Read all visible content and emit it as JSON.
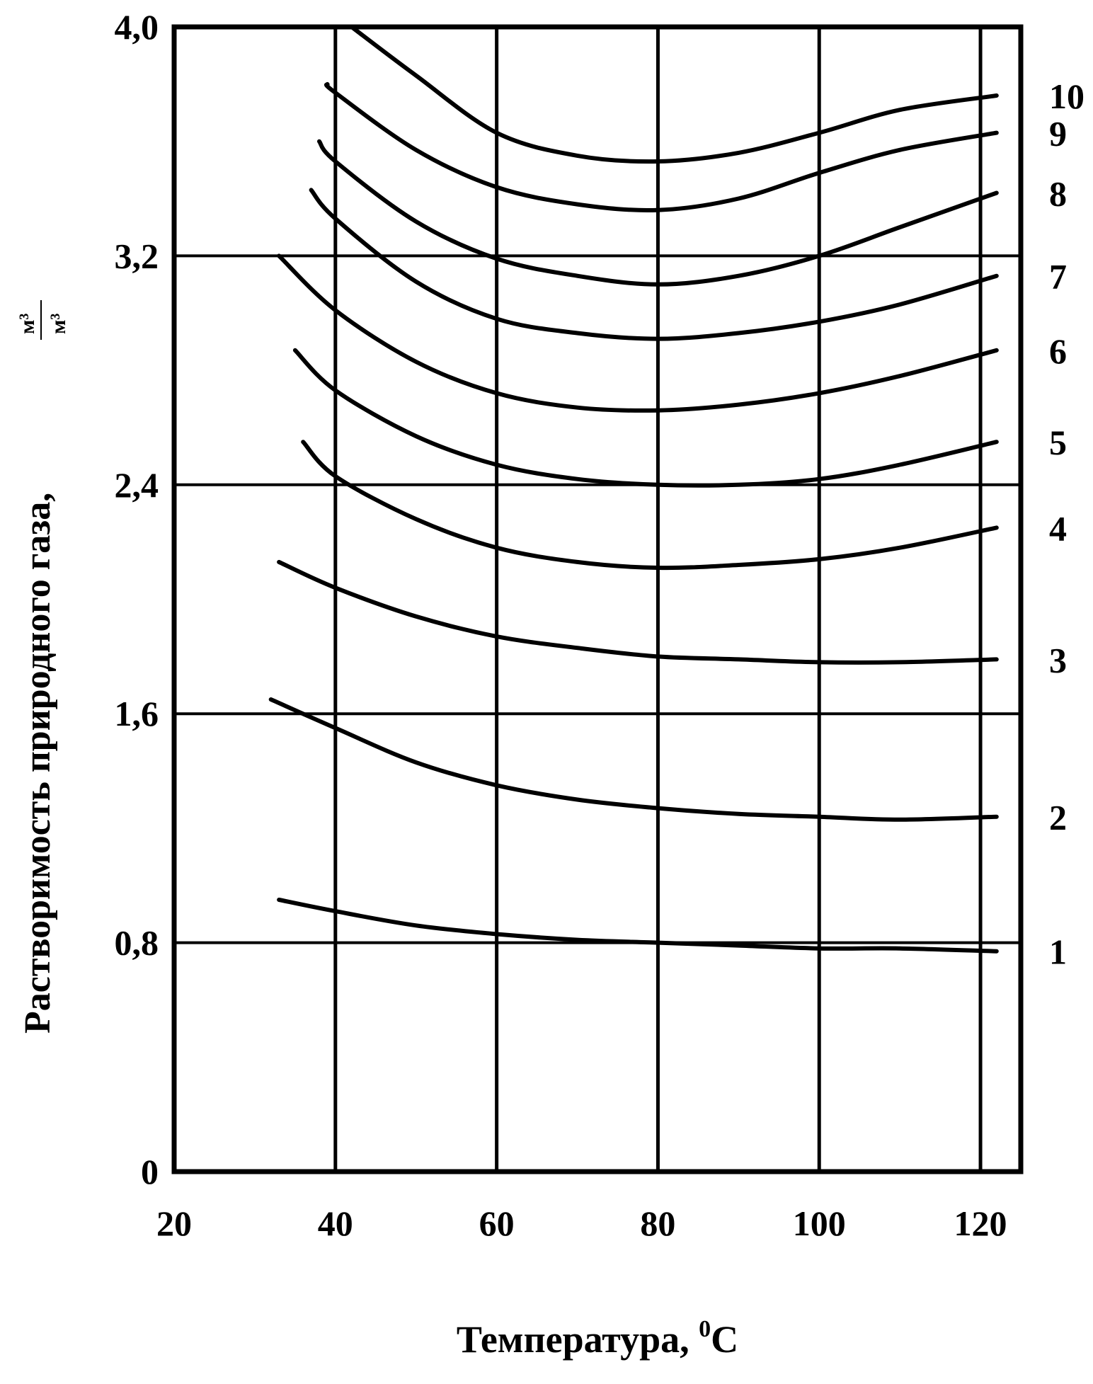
{
  "chart_data": {
    "type": "line",
    "title": "",
    "xlabel_text": "Температура, ",
    "xlabel_unit_sup": "0",
    "xlabel_unit": "C",
    "ylabel_text": "Растворимость природного газа, ",
    "ylabel_unit_num": "м³",
    "ylabel_unit_den": "м³",
    "xlim": [
      20,
      125
    ],
    "ylim": [
      0,
      4.0
    ],
    "x_ticks": [
      20,
      40,
      60,
      80,
      100,
      120
    ],
    "x_tick_labels": [
      "20",
      "40",
      "60",
      "80",
      "100",
      "120"
    ],
    "y_ticks": [
      0,
      0.8,
      1.6,
      2.4,
      3.2,
      4.0
    ],
    "y_tick_labels": [
      "0",
      "0,8",
      "1,6",
      "2,4",
      "3,2",
      "4,0"
    ],
    "grid": true,
    "series": [
      {
        "name": "1",
        "x": [
          33,
          40,
          50,
          60,
          70,
          80,
          90,
          100,
          110,
          122
        ],
        "y": [
          0.95,
          0.91,
          0.86,
          0.83,
          0.81,
          0.8,
          0.79,
          0.78,
          0.78,
          0.77
        ]
      },
      {
        "name": "2",
        "x": [
          32,
          40,
          50,
          60,
          70,
          80,
          90,
          100,
          110,
          122
        ],
        "y": [
          1.65,
          1.55,
          1.43,
          1.35,
          1.3,
          1.27,
          1.25,
          1.24,
          1.23,
          1.24
        ]
      },
      {
        "name": "3",
        "x": [
          33,
          40,
          50,
          60,
          70,
          80,
          90,
          100,
          110,
          122
        ],
        "y": [
          2.13,
          2.04,
          1.94,
          1.87,
          1.83,
          1.8,
          1.79,
          1.78,
          1.78,
          1.79
        ]
      },
      {
        "name": "4",
        "x": [
          36,
          40,
          50,
          60,
          70,
          80,
          90,
          100,
          110,
          122
        ],
        "y": [
          2.55,
          2.43,
          2.28,
          2.18,
          2.13,
          2.11,
          2.12,
          2.14,
          2.18,
          2.25
        ]
      },
      {
        "name": "5",
        "x": [
          35,
          40,
          50,
          60,
          70,
          80,
          90,
          100,
          110,
          122
        ],
        "y": [
          2.87,
          2.73,
          2.57,
          2.47,
          2.42,
          2.4,
          2.4,
          2.42,
          2.47,
          2.55
        ]
      },
      {
        "name": "6",
        "x": [
          33,
          40,
          50,
          60,
          70,
          80,
          90,
          100,
          110,
          122
        ],
        "y": [
          3.2,
          3.01,
          2.83,
          2.72,
          2.67,
          2.66,
          2.68,
          2.72,
          2.78,
          2.87
        ]
      },
      {
        "name": "7",
        "x": [
          37,
          40,
          50,
          60,
          70,
          80,
          90,
          100,
          110,
          122
        ],
        "y": [
          3.43,
          3.33,
          3.11,
          2.98,
          2.93,
          2.91,
          2.93,
          2.97,
          3.03,
          3.13
        ]
      },
      {
        "name": "8",
        "x": [
          38,
          40,
          50,
          60,
          70,
          80,
          90,
          100,
          110,
          122
        ],
        "y": [
          3.6,
          3.53,
          3.32,
          3.19,
          3.13,
          3.1,
          3.13,
          3.2,
          3.3,
          3.42
        ]
      },
      {
        "name": "9",
        "x": [
          39,
          40,
          50,
          60,
          70,
          80,
          90,
          100,
          110,
          122
        ],
        "y": [
          3.8,
          3.77,
          3.57,
          3.44,
          3.38,
          3.36,
          3.4,
          3.49,
          3.57,
          3.63
        ]
      },
      {
        "name": "10",
        "x": [
          42,
          50,
          60,
          70,
          80,
          90,
          100,
          110,
          122
        ],
        "y": [
          4.0,
          3.83,
          3.63,
          3.55,
          3.53,
          3.56,
          3.63,
          3.71,
          3.76
        ]
      }
    ]
  }
}
